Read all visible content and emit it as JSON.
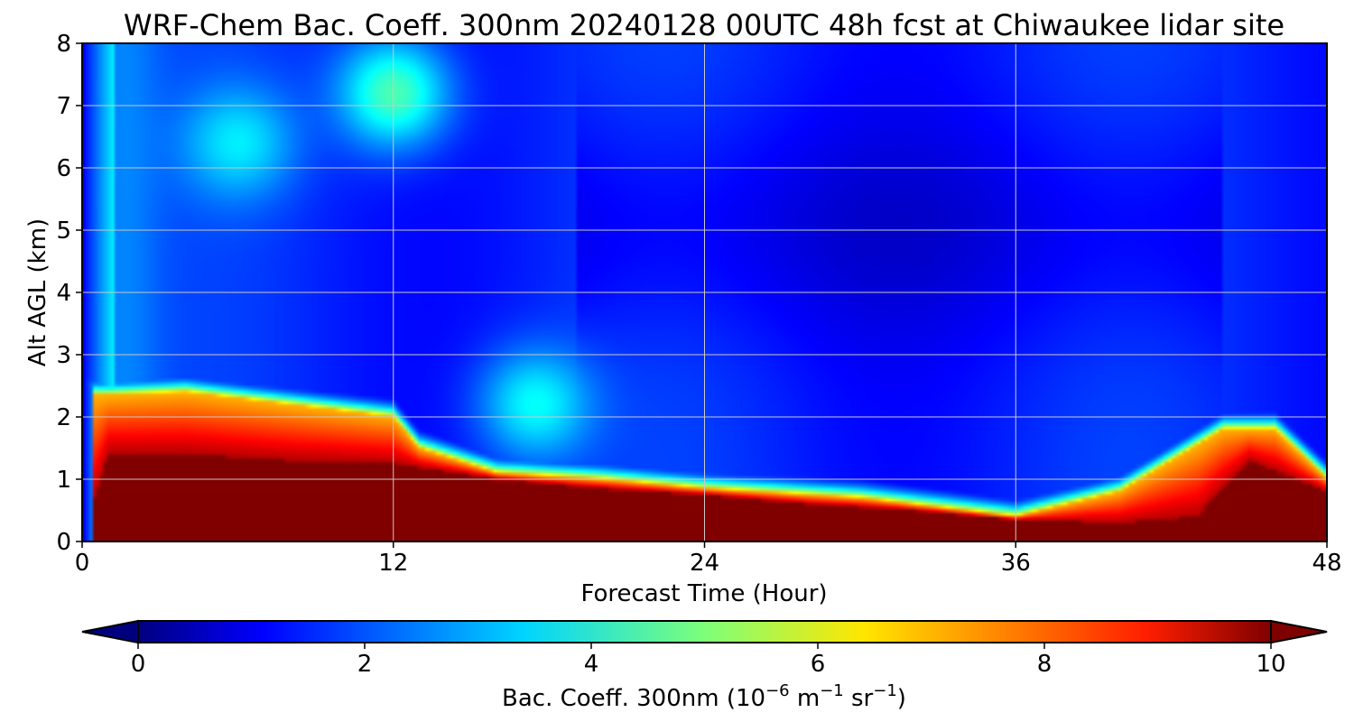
{
  "chart_data": {
    "type": "heatmap",
    "title": "WRF-Chem Bac. Coeff. 300nm  20240128 00UTC 48h fcst at Chiwaukee lidar site",
    "xlabel": "Forecast Time (Hour)",
    "ylabel": "Alt AGL (km)",
    "xlim": [
      0,
      48
    ],
    "ylim": [
      0,
      8
    ],
    "xticks": [
      "0",
      "12",
      "24",
      "36",
      "48"
    ],
    "yticks": [
      "0",
      "1",
      "2",
      "3",
      "4",
      "5",
      "6",
      "7",
      "8"
    ],
    "grid": true,
    "colormap": "jet",
    "colorbar": {
      "label_main": "Bac. Coeff. 300nm  (10",
      "exp1": "−6",
      "mid": " m",
      "exp2": "−1",
      "mid2": " sr",
      "exp3": "−1",
      "tail": ")",
      "range": [
        0,
        10
      ],
      "ticks": [
        "0",
        "2",
        "4",
        "6",
        "8",
        "10"
      ],
      "extend": "both"
    },
    "field_description": {
      "units": "1e-6 m^-1 sr^-1",
      "boundary_layer_top_km": [
        [
          0,
          0.0
        ],
        [
          1,
          1.4
        ],
        [
          4,
          1.4
        ],
        [
          8,
          1.3
        ],
        [
          12,
          1.25
        ],
        [
          16,
          1.0
        ],
        [
          20,
          0.85
        ],
        [
          24,
          0.75
        ],
        [
          28,
          0.6
        ],
        [
          32,
          0.5
        ],
        [
          36,
          0.35
        ],
        [
          40,
          0.3
        ],
        [
          43,
          0.4
        ],
        [
          45,
          1.3
        ],
        [
          48,
          0.8
        ]
      ],
      "aerosol_layer_top_km": [
        [
          1,
          2.35
        ],
        [
          4,
          2.4
        ],
        [
          8,
          2.2
        ],
        [
          12,
          2.0
        ],
        [
          13,
          1.5
        ],
        [
          16,
          1.1
        ],
        [
          20,
          1.0
        ],
        [
          24,
          0.85
        ],
        [
          30,
          0.7
        ],
        [
          36,
          0.4
        ],
        [
          40,
          0.8
        ],
        [
          44,
          1.8
        ],
        [
          46,
          1.8
        ],
        [
          48,
          1.0
        ]
      ],
      "upper_plume": [
        {
          "x": 12,
          "y": 7.2,
          "value": 4.5
        },
        {
          "x": 6,
          "y": 6.4,
          "value": 3.6
        },
        {
          "x": 17.5,
          "y": 2.2,
          "value": 3.8
        }
      ]
    }
  }
}
